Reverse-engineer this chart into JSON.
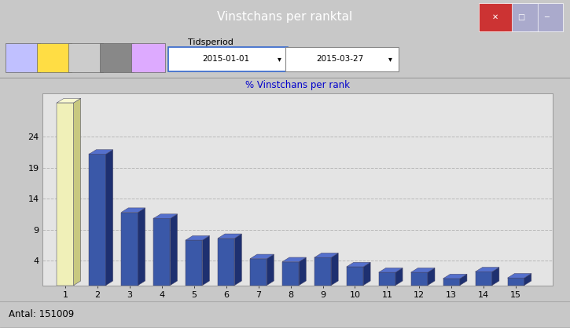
{
  "title_bar_text": "Vinstchans per ranktal",
  "chart_title": "% Vinstchans per rank",
  "chart_title_color": "#0000cc",
  "categories": [
    1,
    2,
    3,
    4,
    5,
    6,
    7,
    8,
    9,
    10,
    11,
    12,
    13,
    14,
    15
  ],
  "values": [
    29.5,
    21.2,
    11.8,
    10.8,
    7.3,
    7.6,
    4.3,
    3.8,
    4.5,
    3.0,
    2.1,
    2.1,
    1.1,
    2.2,
    1.2
  ],
  "bar_face": "#3a58a8",
  "bar_side": "#1e3070",
  "bar_top": "#5570cc",
  "bar1_face": "#f0f0b8",
  "bar1_side": "#c8c880",
  "bar1_top": "#f8f8d0",
  "ylim": [
    0,
    31
  ],
  "yticks": [
    4,
    9,
    14,
    19,
    24
  ],
  "win_bg": "#c8c8c8",
  "toolbar_bg": "#d8d8d8",
  "chart_area_bg": "#d0d0d0",
  "plot_bg": "#e4e4e4",
  "grid_color": "#b8b8b8",
  "status_text": "Antal: 151009",
  "tidsperiod_label": "Tidsperiod",
  "date1": "2015-01-01",
  "date2": "2015-03-27",
  "title_bar_color": "#5080d0",
  "win_border": "#888888"
}
